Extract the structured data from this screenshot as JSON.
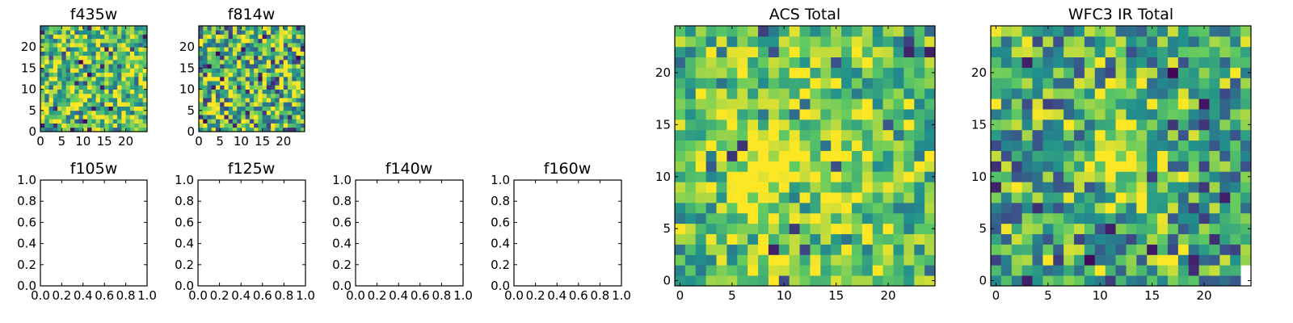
{
  "figure_title": "",
  "colormap": {
    "name": "viridis",
    "stops": [
      "#440154",
      "#3b528b",
      "#21918c",
      "#5ec962",
      "#fde725"
    ]
  },
  "frame_color": "#000000",
  "chart_data": [
    {
      "id": "f435w",
      "type": "heatmap",
      "title": "f435w",
      "xlabel": "",
      "ylabel": "",
      "grid_size": [
        25,
        25
      ],
      "xlim": [
        0,
        25
      ],
      "ylim": [
        0,
        25
      ],
      "xticks": [
        0,
        5,
        10,
        15,
        20
      ],
      "yticks": [
        0,
        5,
        10,
        15,
        20
      ],
      "xtick_labels": [
        "0",
        "5",
        "10",
        "15",
        "20"
      ],
      "ytick_labels": [
        "0",
        "5",
        "10",
        "15",
        "20"
      ],
      "color_range": [
        0,
        1
      ],
      "seed": 11,
      "bias": 0.72,
      "spread": 0.5,
      "blob": null,
      "missing": []
    },
    {
      "id": "f814w",
      "type": "heatmap",
      "title": "f814w",
      "xlabel": "",
      "ylabel": "",
      "grid_size": [
        25,
        25
      ],
      "xlim": [
        0,
        25
      ],
      "ylim": [
        0,
        25
      ],
      "xticks": [
        0,
        5,
        10,
        15,
        20
      ],
      "yticks": [
        0,
        5,
        10,
        15,
        20
      ],
      "xtick_labels": [
        "0",
        "5",
        "10",
        "15",
        "20"
      ],
      "ytick_labels": [
        "0",
        "5",
        "10",
        "15",
        "20"
      ],
      "color_range": [
        0,
        1
      ],
      "seed": 23,
      "bias": 0.68,
      "spread": 0.6,
      "blob": null,
      "missing": []
    },
    {
      "id": "f105w",
      "type": "empty",
      "title": "f105w",
      "xlim": [
        0,
        1
      ],
      "ylim": [
        0,
        1
      ],
      "xticks": [
        0,
        0.2,
        0.4,
        0.6,
        0.8,
        1.0
      ],
      "yticks": [
        0,
        0.2,
        0.4,
        0.6,
        0.8,
        1.0
      ],
      "xtick_labels": [
        "0.0",
        "0.2",
        "0.4",
        "0.6",
        "0.8",
        "1.0"
      ],
      "ytick_labels": [
        "0.0",
        "0.2",
        "0.4",
        "0.6",
        "0.8",
        "1.0"
      ]
    },
    {
      "id": "f125w",
      "type": "empty",
      "title": "f125w",
      "xlim": [
        0,
        1
      ],
      "ylim": [
        0,
        1
      ],
      "xticks": [
        0,
        0.2,
        0.4,
        0.6,
        0.8,
        1.0
      ],
      "yticks": [
        0,
        0.2,
        0.4,
        0.6,
        0.8,
        1.0
      ],
      "xtick_labels": [
        "0.0",
        "0.2",
        "0.4",
        "0.6",
        "0.8",
        "1.0"
      ],
      "ytick_labels": [
        "0.0",
        "0.2",
        "0.4",
        "0.6",
        "0.8",
        "1.0"
      ]
    },
    {
      "id": "f140w",
      "type": "empty",
      "title": "f140w",
      "xlim": [
        0,
        1
      ],
      "ylim": [
        0,
        1
      ],
      "xticks": [
        0,
        0.2,
        0.4,
        0.6,
        0.8,
        1.0
      ],
      "yticks": [
        0,
        0.2,
        0.4,
        0.6,
        0.8,
        1.0
      ],
      "xtick_labels": [
        "0.0",
        "0.2",
        "0.4",
        "0.6",
        "0.8",
        "1.0"
      ],
      "ytick_labels": [
        "0.0",
        "0.2",
        "0.4",
        "0.6",
        "0.8",
        "1.0"
      ]
    },
    {
      "id": "f160w",
      "type": "empty",
      "title": "f160w",
      "xlim": [
        0,
        1
      ],
      "ylim": [
        0,
        1
      ],
      "xticks": [
        0,
        0.2,
        0.4,
        0.6,
        0.8,
        1.0
      ],
      "yticks": [
        0,
        0.2,
        0.4,
        0.6,
        0.8,
        1.0
      ],
      "xtick_labels": [
        "0.0",
        "0.2",
        "0.4",
        "0.6",
        "0.8",
        "1.0"
      ],
      "ytick_labels": [
        "0.0",
        "0.2",
        "0.4",
        "0.6",
        "0.8",
        "1.0"
      ]
    },
    {
      "id": "acs-total",
      "type": "heatmap",
      "title": "ACS Total",
      "xlabel": "",
      "ylabel": "",
      "grid_size": [
        25,
        25
      ],
      "xlim": [
        -0.5,
        24.5
      ],
      "ylim": [
        -0.5,
        24.5
      ],
      "xticks": [
        0,
        5,
        10,
        15,
        20
      ],
      "yticks": [
        0,
        5,
        10,
        15,
        20
      ],
      "xtick_labels": [
        "0",
        "5",
        "10",
        "15",
        "20"
      ],
      "ytick_labels": [
        "0",
        "5",
        "10",
        "15",
        "20"
      ],
      "color_range": [
        0,
        1
      ],
      "seed": 37,
      "bias": 0.7,
      "spread": 0.42,
      "blob": {
        "cx": 11,
        "cy": 12,
        "r": 6,
        "amp": 0.22
      },
      "missing": []
    },
    {
      "id": "wfc3-ir-total",
      "type": "heatmap",
      "title": "WFC3 IR Total",
      "xlabel": "",
      "ylabel": "",
      "grid_size": [
        25,
        25
      ],
      "xlim": [
        -0.5,
        24.5
      ],
      "ylim": [
        -0.5,
        24.5
      ],
      "xticks": [
        0,
        5,
        10,
        15,
        20
      ],
      "yticks": [
        0,
        5,
        10,
        15,
        20
      ],
      "xtick_labels": [
        "0",
        "5",
        "10",
        "15",
        "20"
      ],
      "ytick_labels": [
        "0",
        "5",
        "10",
        "15",
        "20"
      ],
      "color_range": [
        0,
        1
      ],
      "seed": 53,
      "bias": 0.6,
      "spread": 0.5,
      "blob": {
        "cx": 12,
        "cy": 12,
        "r": 3,
        "amp": 0.32
      },
      "missing": [
        [
          24,
          0
        ],
        [
          24,
          1
        ]
      ]
    }
  ]
}
